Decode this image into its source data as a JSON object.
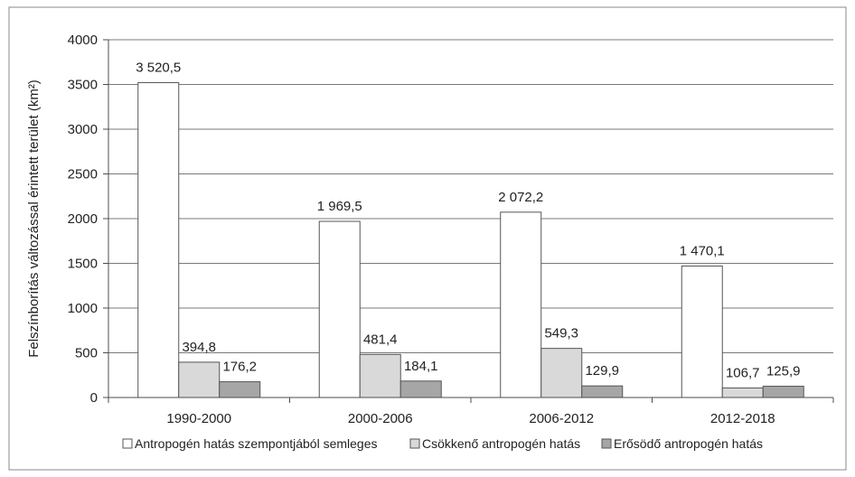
{
  "chart_data": {
    "type": "bar",
    "title": "",
    "xlabel": "",
    "ylabel": "Felszínborítás változással érintett terület (km²)",
    "ylim": [
      0,
      4000
    ],
    "yticks": [
      0,
      500,
      1000,
      1500,
      2000,
      2500,
      3000,
      3500,
      4000
    ],
    "grid": true,
    "legend_position": "bottom",
    "categories": [
      "1990-2000",
      "2000-2006",
      "2006-2012",
      "2012-2018"
    ],
    "series": [
      {
        "name": "Antropogén hatás szempontjából semleges",
        "color": "#ffffff",
        "values": [
          3520.5,
          1969.5,
          2072.2,
          1470.1
        ],
        "labels": [
          "3 520,5",
          "1 969,5",
          "2 072,2",
          "1 470,1"
        ]
      },
      {
        "name": "Csökkenő antropogén hatás",
        "color": "#d9d9d9",
        "values": [
          394.8,
          481.4,
          549.3,
          106.7
        ],
        "labels": [
          "394,8",
          "481,4",
          "549,3",
          "106,7"
        ]
      },
      {
        "name": "Erősödő antropogén hatás",
        "color": "#a6a6a6",
        "values": [
          176.2,
          184.1,
          129.9,
          125.9
        ],
        "labels": [
          "176,2",
          "184,1",
          "129,9",
          "125,9"
        ]
      }
    ]
  }
}
